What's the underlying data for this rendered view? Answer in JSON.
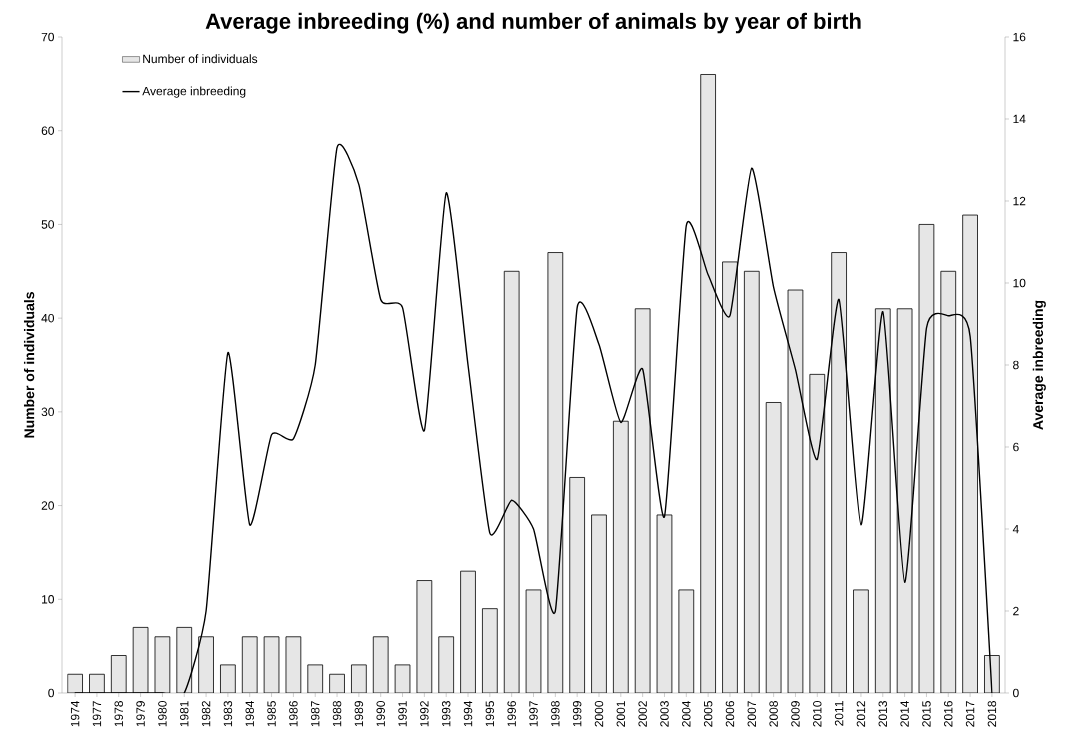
{
  "chart_data": {
    "type": "bar",
    "title": "Average inbreeding (%) and number of animals by year of birth",
    "xlabel": null,
    "ylabel": "Number of individuals",
    "y2label": "Average inbreeding",
    "categories": [
      "1974",
      "1977",
      "1978",
      "1979",
      "1980",
      "1981",
      "1982",
      "1983",
      "1984",
      "1985",
      "1986",
      "1987",
      "1988",
      "1989",
      "1990",
      "1991",
      "1992",
      "1993",
      "1994",
      "1995",
      "1996",
      "1997",
      "1998",
      "1999",
      "2000",
      "2001",
      "2002",
      "2003",
      "2004",
      "2005",
      "2006",
      "2007",
      "2008",
      "2009",
      "2010",
      "2011",
      "2012",
      "2013",
      "2014",
      "2015",
      "2016",
      "2017",
      "2018"
    ],
    "series": [
      {
        "name": "Number of individuals",
        "color": "#e6e6e6",
        "values": [
          2,
          2,
          4,
          7,
          6,
          7,
          6,
          3,
          6,
          6,
          6,
          3,
          2,
          3,
          6,
          3,
          12,
          6,
          13,
          9,
          45,
          11,
          47,
          23,
          19,
          29,
          41,
          19,
          11,
          66,
          46,
          45,
          31,
          43,
          34,
          47,
          11,
          41,
          41,
          50,
          45,
          51,
          4
        ]
      },
      {
        "name": "Average inbreeding",
        "type": "line",
        "axis": "y2",
        "color": "#000000",
        "values": [
          0,
          0,
          0,
          0,
          0,
          0,
          2.0,
          8.3,
          4.1,
          6.3,
          6.2,
          8.0,
          13.3,
          12.4,
          9.6,
          9.4,
          6.4,
          12.2,
          8.0,
          3.9,
          4.7,
          4.0,
          2.0,
          9.4,
          8.5,
          6.6,
          7.9,
          4.3,
          11.4,
          10.2,
          9.2,
          12.8,
          9.9,
          7.9,
          5.7,
          9.6,
          4.1,
          9.3,
          2.7,
          8.9,
          9.2,
          8.7,
          0
        ]
      }
    ],
    "ylim": [
      0,
      70
    ],
    "yticks": [
      0,
      10,
      20,
      30,
      40,
      50,
      60,
      70
    ],
    "y2lim": [
      0,
      16
    ],
    "y2ticks": [
      0,
      2,
      4,
      6,
      8,
      10,
      12,
      14,
      16
    ],
    "grid": false,
    "legend": "top left",
    "marker": "none",
    "line_style": "solid"
  }
}
